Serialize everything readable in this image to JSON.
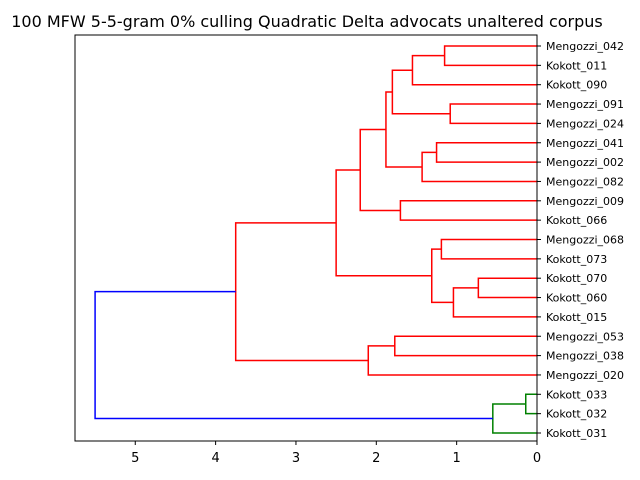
{
  "chart_data": {
    "type": "dendrogram",
    "title": "100 MFW 5-5-gram 0% culling Quadratic Delta advocats unaltered corpus",
    "orientation": "left",
    "xlim": [
      5.75,
      0
    ],
    "xticks": [
      5,
      4,
      3,
      2,
      1,
      0
    ],
    "colors": {
      "cluster_a": "#ff0000",
      "cluster_b": "#008000",
      "root": "#0000ff"
    },
    "leaves": [
      "Mengozzi_042",
      "Kokott_011",
      "Kokott_090",
      "Mengozzi_091",
      "Mengozzi_024",
      "Mengozzi_041",
      "Mengozzi_002",
      "Mengozzi_082",
      "Mengozzi_009",
      "Kokott_066",
      "Mengozzi_068",
      "Kokott_073",
      "Kokott_070",
      "Kokott_060",
      "Kokott_015",
      "Mengozzi_053",
      "Mengozzi_038",
      "Mengozzi_020",
      "Kokott_033",
      "Kokott_032",
      "Kokott_031"
    ],
    "merges": [
      {
        "id": "n1",
        "left": "L0",
        "right": "L1",
        "height": 1.15,
        "color": "cluster_a"
      },
      {
        "id": "n2",
        "left": "n1",
        "right": "L2",
        "height": 1.55,
        "color": "cluster_a"
      },
      {
        "id": "n3",
        "left": "L3",
        "right": "L4",
        "height": 1.08,
        "color": "cluster_a"
      },
      {
        "id": "n4",
        "left": "n2",
        "right": "n3",
        "height": 1.8,
        "color": "cluster_a"
      },
      {
        "id": "n5",
        "left": "L5",
        "right": "L6",
        "height": 1.25,
        "color": "cluster_a"
      },
      {
        "id": "n6",
        "left": "n5",
        "right": "L7",
        "height": 1.43,
        "color": "cluster_a"
      },
      {
        "id": "n7",
        "left": "n4",
        "right": "n6",
        "height": 1.88,
        "color": "cluster_a"
      },
      {
        "id": "n8",
        "left": "L8",
        "right": "L9",
        "height": 1.7,
        "color": "cluster_a"
      },
      {
        "id": "n9",
        "left": "n7",
        "right": "n8",
        "height": 2.2,
        "color": "cluster_a"
      },
      {
        "id": "n10",
        "left": "L10",
        "right": "L11",
        "height": 1.19,
        "color": "cluster_a"
      },
      {
        "id": "n11",
        "left": "L12",
        "right": "L13",
        "height": 0.73,
        "color": "cluster_a"
      },
      {
        "id": "n12",
        "left": "n11",
        "right": "L14",
        "height": 1.04,
        "color": "cluster_a"
      },
      {
        "id": "n13",
        "left": "n10",
        "right": "n12",
        "height": 1.31,
        "color": "cluster_a"
      },
      {
        "id": "n14",
        "left": "n9",
        "right": "n13",
        "height": 2.5,
        "color": "cluster_a"
      },
      {
        "id": "n15",
        "left": "L15",
        "right": "L16",
        "height": 1.77,
        "color": "cluster_a"
      },
      {
        "id": "n16",
        "left": "n15",
        "right": "L17",
        "height": 2.1,
        "color": "cluster_a"
      },
      {
        "id": "n17",
        "left": "n14",
        "right": "n16",
        "height": 3.75,
        "color": "cluster_a"
      },
      {
        "id": "n18",
        "left": "L18",
        "right": "L19",
        "height": 0.14,
        "color": "cluster_b"
      },
      {
        "id": "n19",
        "left": "n18",
        "right": "L20",
        "height": 0.55,
        "color": "cluster_b"
      },
      {
        "id": "n20",
        "left": "n17",
        "right": "n19",
        "height": 5.5,
        "color": "root"
      }
    ]
  }
}
